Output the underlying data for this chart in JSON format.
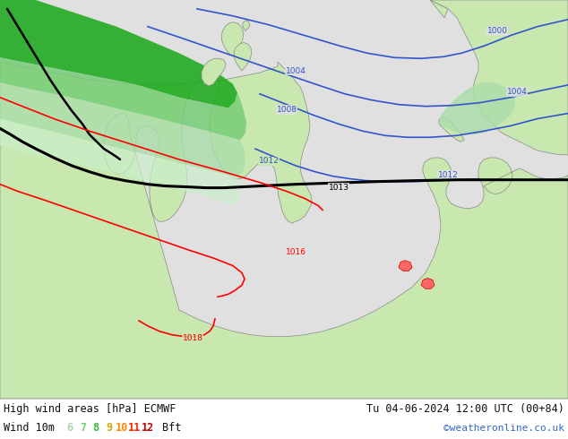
{
  "title_left": "High wind areas [hPa] ECMWF",
  "title_right": "Tu 04-06-2024 12:00 UTC (00+84)",
  "legend_label": "Wind 10m",
  "legend_values": [
    "6",
    "7",
    "8",
    "9",
    "10",
    "11",
    "12"
  ],
  "legend_colors": [
    "#aad4aa",
    "#78cc78",
    "#33bb33",
    "#ccaa00",
    "#ff8800",
    "#ff2200",
    "#cc0000"
  ],
  "legend_suffix": "Bft",
  "credit": "©weatheronline.co.uk",
  "sea_color": "#e0e0e0",
  "land_color": "#c8e8b0",
  "land_outline": "#888888",
  "green_dark": "#22bb22",
  "green_mid": "#88dd88",
  "green_light": "#bbeecc",
  "fig_width": 6.34,
  "fig_height": 4.9,
  "dpi": 100
}
